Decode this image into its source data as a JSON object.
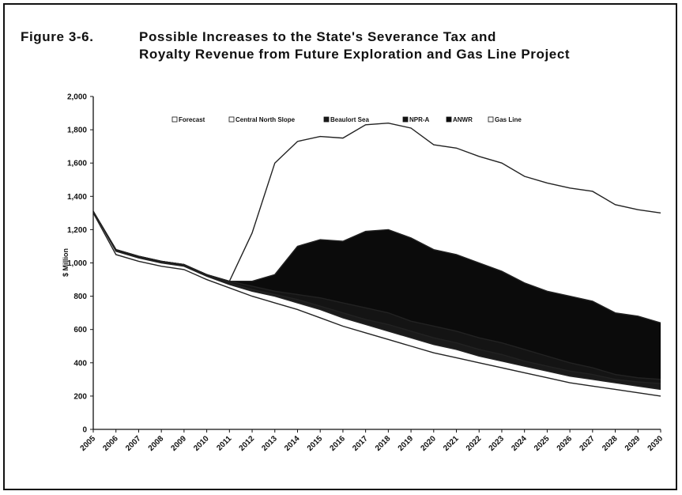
{
  "chart_data": {
    "type": "area",
    "title_prefix": "Figure  3-6.",
    "title_line1": "Possible Increases to the State's Severance Tax and",
    "title_line2": "Royalty Revenue from Future Exploration and Gas Line Project",
    "ylabel": "$ Million",
    "xlabel": "",
    "ylim": [
      0,
      2000
    ],
    "yticks": [
      0,
      200,
      400,
      600,
      800,
      1000,
      1200,
      1400,
      1600,
      1800,
      2000
    ],
    "ytick_labels": [
      "0",
      "200",
      "400",
      "600",
      "800",
      "1,000",
      "1,200",
      "1,400",
      "1,600",
      "1,800",
      "2,000"
    ],
    "x": [
      "2005",
      "2006",
      "2007",
      "2008",
      "2009",
      "2010",
      "2011",
      "2012",
      "2013",
      "2014",
      "2015",
      "2016",
      "2017",
      "2018",
      "2019",
      "2020",
      "2021",
      "2022",
      "2023",
      "2024",
      "2025",
      "2026",
      "2027",
      "2028",
      "2029",
      "2030"
    ],
    "legend_position": "top",
    "grid": false,
    "series": [
      {
        "name": "Forecast",
        "color": "#ffffff",
        "values": [
          1300,
          1050,
          1010,
          980,
          960,
          900,
          850,
          800,
          760,
          720,
          670,
          620,
          580,
          540,
          500,
          460,
          430,
          400,
          370,
          340,
          310,
          280,
          260,
          240,
          220,
          200
        ]
      },
      {
        "name": "Central North Slope",
        "color": "#ffffff",
        "values": [
          1310,
          1070,
          1030,
          1000,
          980,
          920,
          870,
          830,
          800,
          760,
          720,
          670,
          630,
          590,
          550,
          510,
          480,
          440,
          410,
          380,
          350,
          320,
          300,
          280,
          260,
          240
        ]
      },
      {
        "name": "Beaulort Sea",
        "color": "#1a1a1a",
        "values": [
          1310,
          1080,
          1040,
          1010,
          990,
          930,
          880,
          840,
          810,
          780,
          740,
          700,
          660,
          630,
          590,
          550,
          520,
          480,
          450,
          410,
          380,
          350,
          330,
          300,
          285,
          275
        ]
      },
      {
        "name": "NPR-A",
        "color": "#141414",
        "values": [
          1310,
          1080,
          1040,
          1010,
          990,
          930,
          890,
          860,
          830,
          810,
          790,
          760,
          730,
          700,
          650,
          620,
          590,
          550,
          520,
          480,
          440,
          400,
          370,
          330,
          310,
          300
        ]
      },
      {
        "name": "ANWR",
        "color": "#0b0b0b",
        "values": [
          1310,
          1080,
          1040,
          1010,
          990,
          930,
          890,
          890,
          930,
          1100,
          1140,
          1130,
          1190,
          1200,
          1150,
          1080,
          1050,
          1000,
          950,
          880,
          830,
          800,
          770,
          700,
          680,
          640
        ]
      },
      {
        "name": "Gas Line",
        "color": "#ffffff",
        "values": [
          1310,
          1080,
          1040,
          1010,
          990,
          930,
          890,
          1180,
          1600,
          1730,
          1760,
          1750,
          1830,
          1840,
          1810,
          1710,
          1690,
          1640,
          1600,
          1520,
          1480,
          1450,
          1430,
          1350,
          1320,
          1300
        ]
      }
    ]
  }
}
